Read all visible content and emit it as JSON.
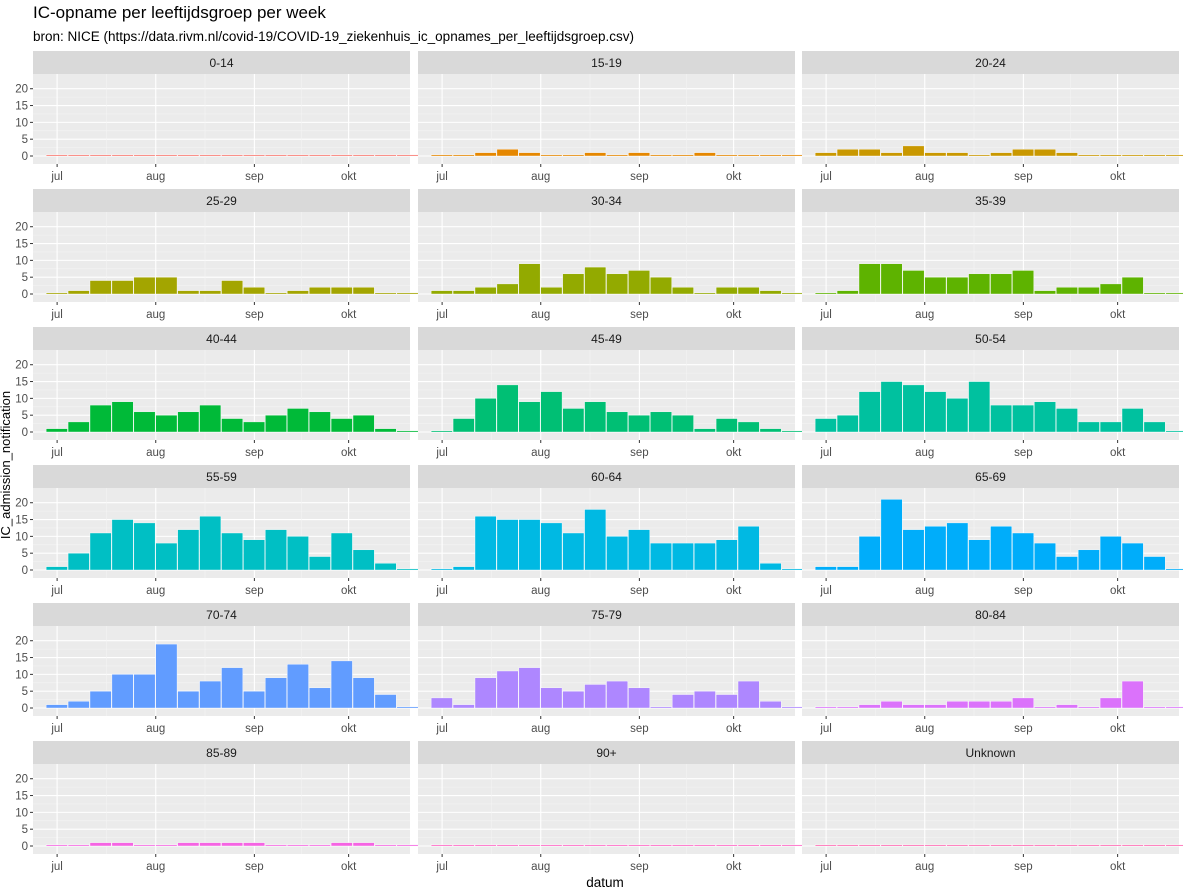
{
  "chart_data": {
    "type": "bar",
    "title": "IC-opname per leeftijdsgroep per week",
    "subtitle": "bron: NICE (https://data.rivm.nl/covid-19/COVID-19_ziekenhuis_ic_opnames_per_leeftijdsgroep.csv)",
    "xlabel": "datum",
    "ylabel": "IC_admission_notification",
    "x_ticks": [
      "jul",
      "aug",
      "sep",
      "okt"
    ],
    "y_ticks": [
      0,
      5,
      10,
      15,
      20
    ],
    "ylim": [
      0,
      22
    ],
    "facets": [
      {
        "name": "0-14",
        "color": "#F8766D",
        "values": [
          0,
          0,
          0,
          0,
          0,
          0,
          0,
          0,
          0,
          0,
          0,
          0,
          0,
          0,
          0,
          0,
          0
        ]
      },
      {
        "name": "15-19",
        "color": "#E58700",
        "values": [
          0,
          0,
          1,
          2,
          1,
          0,
          0,
          1,
          0,
          1,
          0,
          0,
          1,
          0,
          0,
          0,
          0
        ]
      },
      {
        "name": "20-24",
        "color": "#C99800",
        "values": [
          1,
          2,
          2,
          1,
          3,
          1,
          1,
          0,
          1,
          2,
          2,
          1,
          0,
          0,
          0,
          0,
          0
        ]
      },
      {
        "name": "25-29",
        "color": "#A3A500",
        "values": [
          0,
          1,
          4,
          4,
          5,
          5,
          1,
          1,
          4,
          2,
          0,
          1,
          2,
          2,
          2,
          0,
          0
        ]
      },
      {
        "name": "30-34",
        "color": "#93AA00",
        "values": [
          1,
          1,
          2,
          3,
          9,
          2,
          6,
          8,
          6,
          7,
          5,
          2,
          0,
          2,
          2,
          1,
          0
        ]
      },
      {
        "name": "35-39",
        "color": "#5EB300",
        "values": [
          0,
          1,
          9,
          9,
          7,
          5,
          5,
          6,
          6,
          7,
          1,
          2,
          2,
          3,
          5,
          0,
          0
        ]
      },
      {
        "name": "40-44",
        "color": "#00BA38",
        "values": [
          1,
          3,
          8,
          9,
          6,
          5,
          6,
          8,
          4,
          3,
          5,
          7,
          6,
          4,
          5,
          1,
          0
        ]
      },
      {
        "name": "45-49",
        "color": "#00BF74",
        "values": [
          0,
          4,
          10,
          14,
          9,
          12,
          7,
          9,
          6,
          5,
          6,
          5,
          1,
          4,
          3,
          1,
          0
        ]
      },
      {
        "name": "50-54",
        "color": "#00C19F",
        "values": [
          4,
          5,
          12,
          15,
          14,
          12,
          10,
          15,
          8,
          8,
          9,
          7,
          3,
          3,
          7,
          3,
          0
        ]
      },
      {
        "name": "55-59",
        "color": "#00BFC4",
        "values": [
          1,
          5,
          11,
          15,
          14,
          8,
          12,
          16,
          11,
          9,
          12,
          10,
          4,
          11,
          6,
          2,
          0
        ]
      },
      {
        "name": "60-64",
        "color": "#00B9E3",
        "values": [
          0,
          1,
          16,
          15,
          15,
          14,
          11,
          18,
          10,
          12,
          8,
          8,
          8,
          9,
          13,
          2,
          0
        ]
      },
      {
        "name": "65-69",
        "color": "#00ADFA",
        "values": [
          1,
          1,
          10,
          21,
          12,
          13,
          14,
          9,
          13,
          11,
          8,
          4,
          6,
          10,
          8,
          4,
          0
        ]
      },
      {
        "name": "70-74",
        "color": "#619CFF",
        "values": [
          1,
          2,
          5,
          10,
          10,
          19,
          5,
          8,
          12,
          5,
          9,
          13,
          6,
          14,
          9,
          4,
          0
        ]
      },
      {
        "name": "75-79",
        "color": "#AE87FF",
        "values": [
          3,
          1,
          9,
          11,
          12,
          6,
          5,
          7,
          8,
          6,
          0,
          4,
          5,
          4,
          8,
          2,
          0
        ]
      },
      {
        "name": "80-84",
        "color": "#DB72FB",
        "values": [
          0,
          0,
          1,
          2,
          1,
          1,
          2,
          2,
          2,
          3,
          0,
          1,
          0,
          3,
          8,
          0,
          0
        ]
      },
      {
        "name": "85-89",
        "color": "#F564E3",
        "values": [
          0,
          0,
          1,
          1,
          0,
          0,
          1,
          1,
          1,
          1,
          0,
          0,
          0,
          1,
          1,
          0,
          0
        ]
      },
      {
        "name": "90+",
        "color": "#FF61C3",
        "values": [
          0,
          0,
          0,
          0,
          0,
          0,
          0,
          0,
          0,
          0,
          0,
          0,
          0,
          0,
          0,
          0,
          0
        ]
      },
      {
        "name": "Unknown",
        "color": "#FF64B0",
        "values": [
          0,
          0,
          0,
          0,
          0,
          0,
          0,
          0,
          0,
          0,
          0,
          0,
          0,
          0,
          0,
          0,
          0
        ]
      }
    ]
  }
}
